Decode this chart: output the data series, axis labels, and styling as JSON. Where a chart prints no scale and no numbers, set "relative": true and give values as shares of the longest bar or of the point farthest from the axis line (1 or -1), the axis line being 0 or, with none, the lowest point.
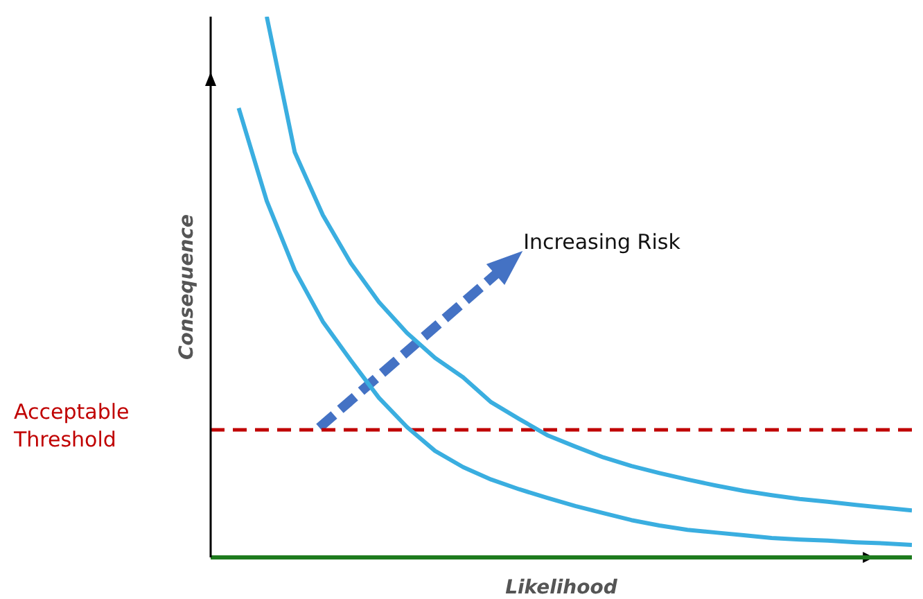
{
  "chart_data": {
    "type": "line",
    "relative": true,
    "xlabel": "Likelihood",
    "ylabel": "Consequence",
    "categories": [
      null,
      null,
      null,
      null,
      null,
      null,
      null,
      null,
      null,
      null,
      null,
      null,
      null,
      null,
      null,
      null,
      null,
      null,
      null,
      null,
      null,
      null,
      null,
      null,
      null,
      null
    ],
    "series": [
      {
        "color": "#3aaee0",
        "values": [
          null,
          0.831,
          0.659,
          0.531,
          0.436,
          0.364,
          0.295,
          0.241,
          0.197,
          0.167,
          0.144,
          0.126,
          0.11,
          0.095,
          0.082,
          0.069,
          0.059,
          0.051,
          0.046,
          0.041,
          0.036,
          0.033,
          0.031,
          0.028,
          0.026,
          0.023
        ]
      },
      {
        "color": "#3aaee0",
        "values": [
          null,
          null,
          1.0,
          0.749,
          0.633,
          0.544,
          0.472,
          0.415,
          0.369,
          0.333,
          0.287,
          0.256,
          0.226,
          0.205,
          0.185,
          0.169,
          0.156,
          0.144,
          0.133,
          0.123,
          0.115,
          0.108,
          0.103,
          0.097,
          0.092,
          0.087
        ]
      }
    ],
    "ref_lines": [
      {
        "axis": "y",
        "value": 0.236,
        "label": "Acceptable Threshold",
        "color": "#c00000",
        "line_style": "dashed"
      }
    ],
    "annotations": [
      "Increasing Risk"
    ],
    "marker": "none",
    "line_style": "solid"
  }
}
